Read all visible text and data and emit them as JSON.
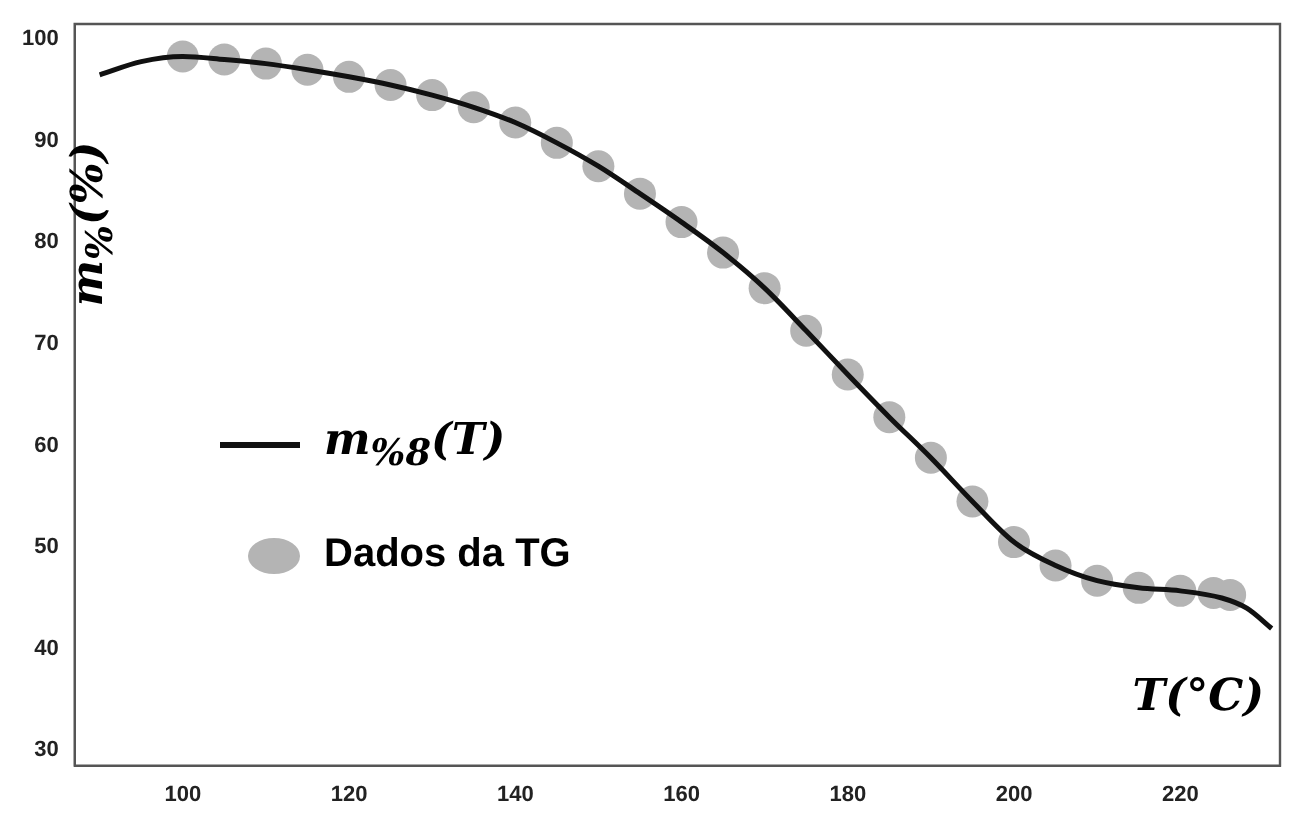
{
  "chart_data": {
    "type": "line",
    "xlabel": "T(°C)",
    "ylabel": "m$_{%}$(%)",
    "xlim": [
      87,
      232
    ],
    "ylim": [
      28.5,
      101.5
    ],
    "xticks": [
      100,
      120,
      140,
      160,
      180,
      200,
      220
    ],
    "yticks": [
      30,
      40,
      50,
      60,
      70,
      80,
      90,
      100
    ],
    "legend": "left",
    "series": [
      {
        "name": "Dados da TG",
        "type": "scatter",
        "marker": "circle",
        "color": "#b4b4b4",
        "x": [
          100,
          105,
          110,
          115,
          120,
          125,
          130,
          135,
          140,
          145,
          150,
          155,
          160,
          165,
          170,
          175,
          180,
          185,
          190,
          195,
          200,
          205,
          210,
          215,
          220,
          224,
          226
        ],
        "values": [
          98.3,
          98.0,
          97.6,
          97.0,
          96.3,
          95.5,
          94.5,
          93.3,
          91.8,
          89.8,
          87.5,
          84.8,
          82,
          79,
          75.5,
          71.3,
          67,
          62.8,
          58.8,
          54.5,
          50.5,
          48.2,
          46.7,
          46,
          45.7,
          45.5,
          45.3
        ]
      },
      {
        "name": "m$_{%8}$(T)",
        "color": "#111111",
        "x": [
          90,
          95,
          100,
          105,
          110,
          115,
          120,
          125,
          130,
          135,
          140,
          145,
          150,
          155,
          160,
          165,
          170,
          175,
          180,
          185,
          190,
          195,
          200,
          205,
          210,
          215,
          220,
          225,
          228,
          231
        ],
        "values": [
          96.5,
          97.8,
          98.3,
          98.0,
          97.6,
          97.0,
          96.3,
          95.5,
          94.5,
          93.3,
          91.8,
          89.8,
          87.5,
          84.8,
          82,
          79,
          75.5,
          71.3,
          67,
          62.8,
          58.8,
          54.5,
          50.5,
          48.2,
          46.7,
          46,
          45.7,
          45,
          44,
          42
        ]
      }
    ]
  }
}
